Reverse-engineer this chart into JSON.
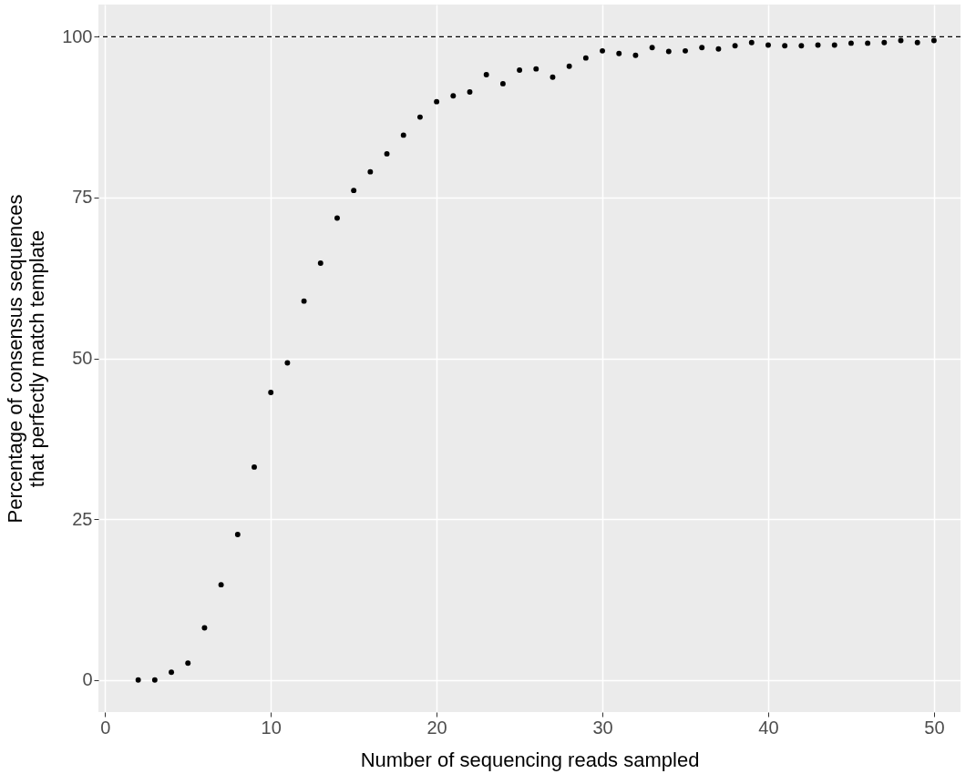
{
  "chart_data": {
    "type": "scatter",
    "xlabel": "Number of sequencing reads sampled",
    "ylabel": "Percentage of consensus sequences\nthat perfectly match template",
    "x": [
      2,
      3,
      4,
      5,
      6,
      7,
      8,
      9,
      10,
      11,
      12,
      13,
      14,
      15,
      16,
      17,
      18,
      19,
      20,
      21,
      22,
      23,
      24,
      25,
      26,
      27,
      28,
      29,
      30,
      31,
      32,
      33,
      34,
      35,
      36,
      37,
      38,
      39,
      40,
      41,
      42,
      43,
      44,
      45,
      46,
      47,
      48,
      49,
      50
    ],
    "series": [
      {
        "color": "#000000",
        "values": [
          0,
          0,
          1.2,
          2.6,
          8.1,
          14.8,
          22.6,
          33.1,
          44.7,
          49.3,
          58.9,
          64.8,
          71.8,
          76.1,
          79.0,
          81.8,
          84.7,
          87.5,
          89.9,
          90.8,
          91.4,
          94.1,
          92.7,
          94.8,
          95.0,
          93.7,
          95.4,
          96.7,
          97.8,
          97.4,
          97.1,
          98.3,
          97.7,
          97.8,
          98.3,
          98.1,
          98.6,
          99.1,
          98.7,
          98.6,
          98.6,
          98.7,
          98.7,
          99.0,
          99.0,
          99.1,
          99.4,
          99.1,
          99.4
        ]
      }
    ],
    "xlim": [
      -0.4,
      51.6
    ],
    "ylim": [
      -5,
      105
    ],
    "xticks": [
      0,
      10,
      20,
      30,
      40,
      50
    ],
    "yticks": [
      0,
      25,
      50,
      75,
      100
    ],
    "grid": true,
    "marker": "circle",
    "ref_lines": [
      {
        "axis": "y",
        "value": 100,
        "line_style": "dashed",
        "color": "#000000"
      }
    ]
  }
}
